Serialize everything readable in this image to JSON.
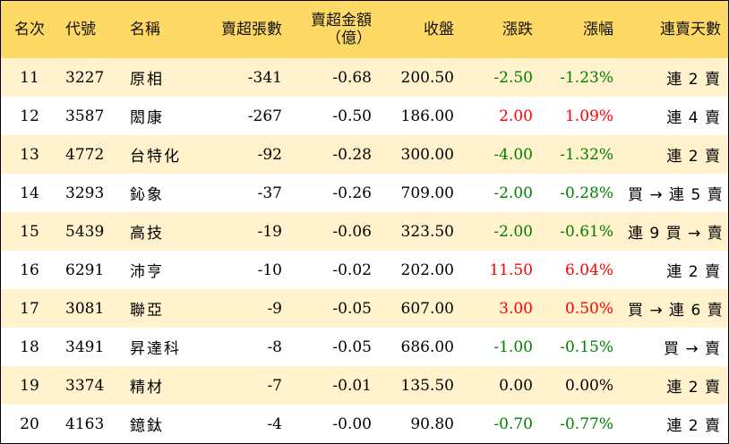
{
  "headers": {
    "rank": "名次",
    "code": "代號",
    "name": "名稱",
    "net_sell_lots": "賣超張數",
    "net_sell_amount": "賣超金額",
    "net_sell_amount_unit": "（億）",
    "close": "收盤",
    "change": "漲跌",
    "change_pct": "漲幅",
    "streak": "連賣天數"
  },
  "rows": [
    {
      "rank": "11",
      "code": "3227",
      "name": "原相",
      "lots": "-341",
      "amount": "-0.68",
      "close": "200.50",
      "change": "-2.50",
      "pct": "-1.23%",
      "streak": "連 2 賣",
      "dir": "down"
    },
    {
      "rank": "12",
      "code": "3587",
      "name": "閎康",
      "lots": "-267",
      "amount": "-0.50",
      "close": "186.00",
      "change": "2.00",
      "pct": "1.09%",
      "streak": "連 4 賣",
      "dir": "up"
    },
    {
      "rank": "13",
      "code": "4772",
      "name": "台特化",
      "lots": "-92",
      "amount": "-0.28",
      "close": "300.00",
      "change": "-4.00",
      "pct": "-1.32%",
      "streak": "連 2 賣",
      "dir": "down"
    },
    {
      "rank": "14",
      "code": "3293",
      "name": "鈊象",
      "lots": "-37",
      "amount": "-0.26",
      "close": "709.00",
      "change": "-2.00",
      "pct": "-0.28%",
      "streak": "買 → 連 5 賣",
      "dir": "down"
    },
    {
      "rank": "15",
      "code": "5439",
      "name": "高技",
      "lots": "-19",
      "amount": "-0.06",
      "close": "323.50",
      "change": "-2.00",
      "pct": "-0.61%",
      "streak": "連 9 買 → 賣",
      "dir": "down"
    },
    {
      "rank": "16",
      "code": "6291",
      "name": "沛亨",
      "lots": "-10",
      "amount": "-0.02",
      "close": "202.00",
      "change": "11.50",
      "pct": "6.04%",
      "streak": "連 2 賣",
      "dir": "up"
    },
    {
      "rank": "17",
      "code": "3081",
      "name": "聯亞",
      "lots": "-9",
      "amount": "-0.05",
      "close": "607.00",
      "change": "3.00",
      "pct": "0.50%",
      "streak": "買 → 連 6 賣",
      "dir": "up"
    },
    {
      "rank": "18",
      "code": "3491",
      "name": "昇達科",
      "lots": "-8",
      "amount": "-0.05",
      "close": "686.00",
      "change": "-1.00",
      "pct": "-0.15%",
      "streak": "買 → 賣",
      "dir": "down"
    },
    {
      "rank": "19",
      "code": "3374",
      "name": "精材",
      "lots": "-7",
      "amount": "-0.01",
      "close": "135.50",
      "change": "0.00",
      "pct": "0.00%",
      "streak": "連 2 賣",
      "dir": "flat"
    },
    {
      "rank": "20",
      "code": "4163",
      "name": "鐿鈦",
      "lots": "-4",
      "amount": "-0.00",
      "close": "90.80",
      "change": "-0.70",
      "pct": "-0.77%",
      "streak": "連 2 賣",
      "dir": "down"
    }
  ],
  "colors": {
    "header_bg": "#ffd966",
    "stripe_bg": "#fff2cc",
    "up": "#ff0000",
    "down": "#008000"
  }
}
